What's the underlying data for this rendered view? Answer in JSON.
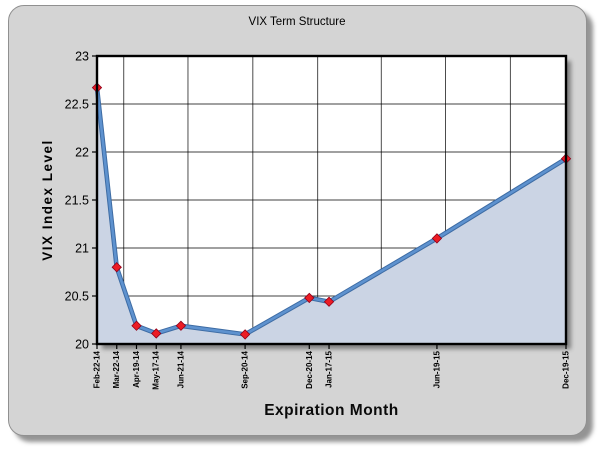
{
  "chart_data": {
    "type": "area",
    "title": "VIX Term Structure",
    "xlabel": "Expiration Month",
    "ylabel": "VIX Index Level",
    "categories": [
      "Feb-22-14",
      "Mar-22-14",
      "Apr-19-14",
      "May-17-14",
      "Jun-21-14",
      "Sep-20-14",
      "Dec-20-14",
      "Jan-17-15",
      "Jun-19-15",
      "Dec-19-15"
    ],
    "x_days": [
      0,
      28,
      56,
      84,
      119,
      210,
      301,
      329,
      482,
      665
    ],
    "values": [
      22.67,
      20.8,
      20.19,
      20.11,
      20.19,
      20.1,
      20.48,
      20.44,
      21.1,
      21.93
    ],
    "ylim": [
      20,
      23
    ],
    "yticks": [
      20,
      20.5,
      21,
      21.5,
      22,
      22.5,
      23
    ],
    "grid": true,
    "legend": "none",
    "vgridline_days": [
      38,
      129,
      221,
      313,
      403,
      494,
      586
    ],
    "marker": "red-diamond",
    "colors": {
      "line": "#5E92CF",
      "line_edge": "#3E6CA4",
      "fill": "#CBD4E4",
      "marker": "#EC1C24",
      "marker_edge": "#90001A",
      "grid": "#000000",
      "axis_border": "#000000",
      "plot_bg": "#FFFFFF",
      "card_bg": "#D4D4D4"
    }
  }
}
